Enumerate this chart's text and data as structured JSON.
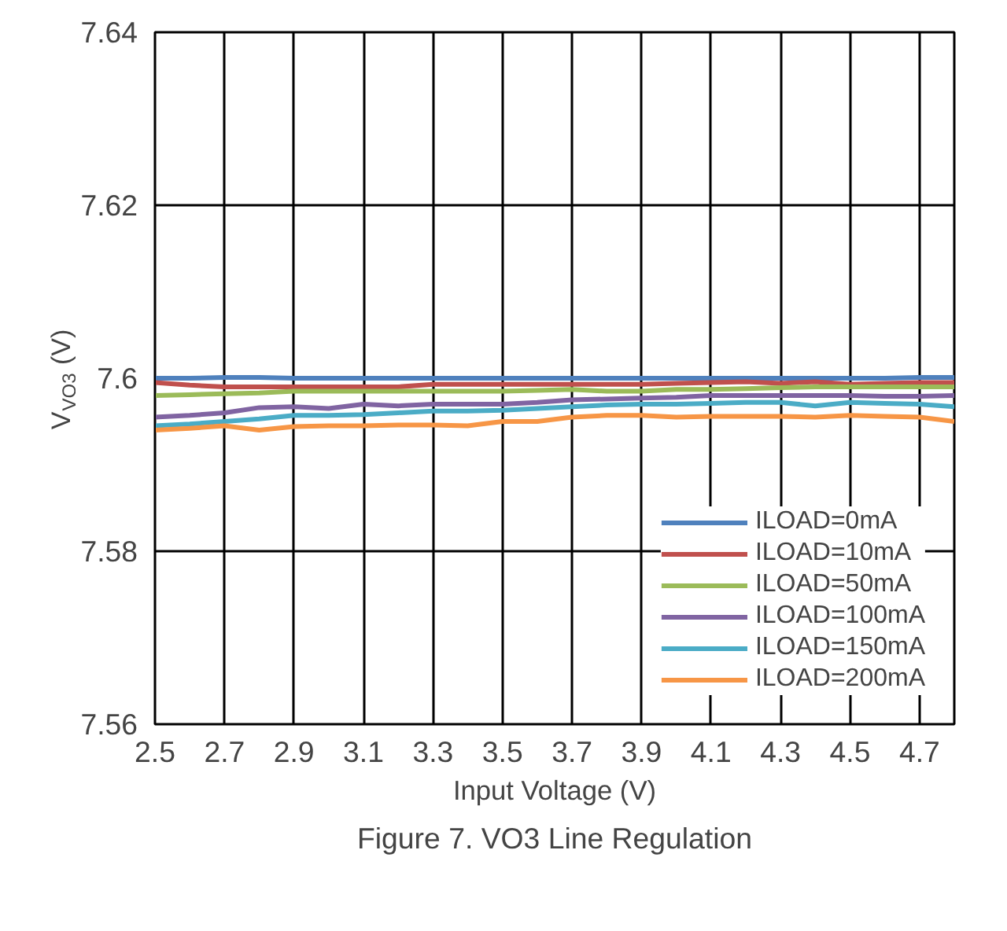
{
  "chart_data": {
    "type": "line",
    "title": "Figure 7. VO3 Line Regulation",
    "xlabel": "Input Voltage (V)",
    "ylabel": "V$_{VO3}$ (V)",
    "x": [
      2.5,
      2.6,
      2.7,
      2.8,
      2.9,
      3.0,
      3.1,
      3.2,
      3.3,
      3.4,
      3.5,
      3.6,
      3.7,
      3.8,
      3.9,
      4.0,
      4.1,
      4.2,
      4.3,
      4.4,
      4.5,
      4.6,
      4.7,
      4.8
    ],
    "series": [
      {
        "name": "ILOAD=0mA",
        "color": "#4f81bd",
        "values": [
          7.6,
          7.6,
          7.6001,
          7.6001,
          7.6,
          7.6,
          7.6,
          7.6,
          7.6,
          7.6,
          7.6,
          7.6,
          7.6,
          7.6,
          7.6,
          7.6,
          7.6,
          7.6,
          7.6,
          7.6,
          7.6,
          7.6,
          7.6001,
          7.6001
        ]
      },
      {
        "name": "ILOAD=10mA",
        "color": "#c0504d",
        "values": [
          7.5995,
          7.5992,
          7.599,
          7.599,
          7.599,
          7.599,
          7.599,
          7.599,
          7.5993,
          7.5993,
          7.5993,
          7.5993,
          7.5993,
          7.5993,
          7.5993,
          7.5994,
          7.5995,
          7.5996,
          7.5994,
          7.5996,
          7.5993,
          7.5994,
          7.5995,
          7.5995
        ]
      },
      {
        "name": "ILOAD=50mA",
        "color": "#9bbb59",
        "values": [
          7.598,
          7.5981,
          7.5982,
          7.5983,
          7.5985,
          7.5985,
          7.5985,
          7.5985,
          7.5985,
          7.5985,
          7.5985,
          7.5986,
          7.5987,
          7.5985,
          7.5985,
          7.5987,
          7.5987,
          7.5988,
          7.5989,
          7.599,
          7.599,
          7.599,
          7.599,
          7.599
        ]
      },
      {
        "name": "ILOAD=100mA",
        "color": "#8064a2",
        "values": [
          7.5955,
          7.5957,
          7.596,
          7.5966,
          7.5967,
          7.5965,
          7.597,
          7.5968,
          7.597,
          7.597,
          7.597,
          7.5972,
          7.5975,
          7.5976,
          7.5977,
          7.5978,
          7.598,
          7.598,
          7.598,
          7.598,
          7.598,
          7.5979,
          7.5979,
          7.598
        ]
      },
      {
        "name": "ILOAD=150mA",
        "color": "#4bacc6",
        "values": [
          7.5945,
          7.5947,
          7.595,
          7.5953,
          7.5957,
          7.5957,
          7.5958,
          7.596,
          7.5962,
          7.5962,
          7.5963,
          7.5965,
          7.5967,
          7.5969,
          7.597,
          7.597,
          7.5971,
          7.5972,
          7.5972,
          7.5968,
          7.5972,
          7.5971,
          7.597,
          7.5967
        ]
      },
      {
        "name": "ILOAD=200mA",
        "color": "#f79646",
        "values": [
          7.594,
          7.5942,
          7.5945,
          7.594,
          7.5944,
          7.5945,
          7.5945,
          7.5946,
          7.5946,
          7.5945,
          7.595,
          7.595,
          7.5955,
          7.5957,
          7.5957,
          7.5955,
          7.5956,
          7.5956,
          7.5956,
          7.5955,
          7.5957,
          7.5956,
          7.5955,
          7.595
        ]
      }
    ],
    "xlim": [
      2.5,
      4.8
    ],
    "xticks": [
      2.5,
      2.7,
      2.9,
      3.1,
      3.3,
      3.5,
      3.7,
      3.9,
      4.1,
      4.3,
      4.5,
      4.7
    ],
    "ylim": [
      7.56,
      7.64
    ],
    "yticks": [
      {
        "value": 7.56,
        "label": "7.56"
      },
      {
        "value": 7.58,
        "label": "7.58"
      },
      {
        "value": 7.6,
        "label": "7.6"
      },
      {
        "value": 7.62,
        "label": "7.62"
      },
      {
        "value": 7.64,
        "label": "7.64"
      }
    ],
    "grid": true,
    "legend": "bottom right",
    "marker": "none",
    "line_style": "solid"
  }
}
